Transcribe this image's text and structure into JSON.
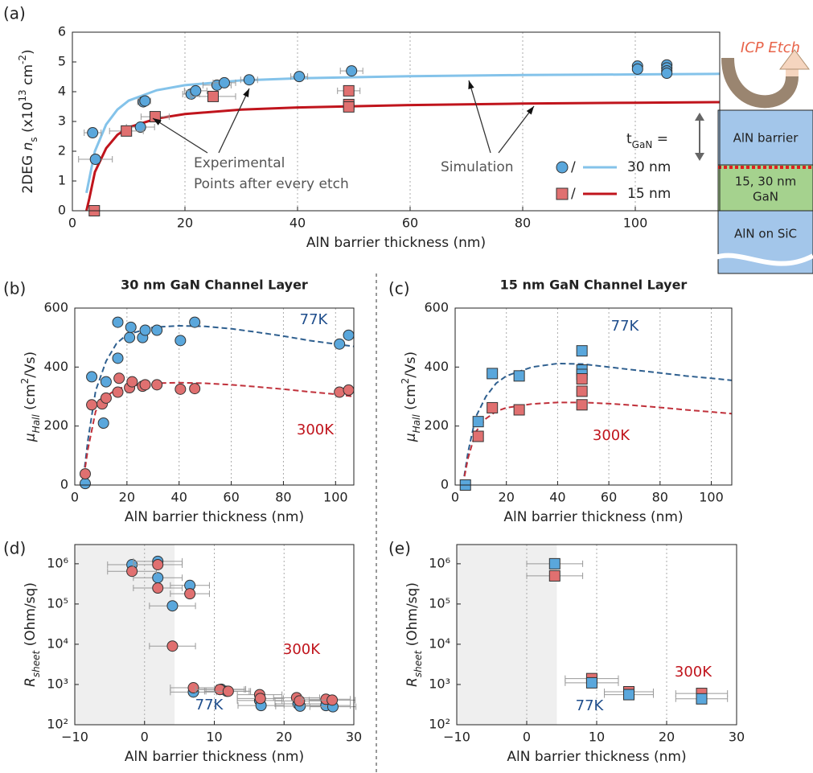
{
  "chart_data": [
    {
      "type": "scatter",
      "panel_label": "(a)",
      "xlabel": [
        {
          "text": "AlN barrier thickness (nm)"
        }
      ],
      "ylabel": [
        {
          "text": "2DEG "
        },
        {
          "text": "n",
          "style": "italic"
        },
        {
          "text": "s",
          "style": "sub"
        },
        {
          "text": " (x10"
        },
        {
          "text": "13",
          "style": "sup"
        },
        {
          "text": " cm"
        },
        {
          "text": "-2",
          "style": "sup"
        },
        {
          "text": ")"
        }
      ],
      "xlim": [
        0,
        115
      ],
      "ylim": [
        0,
        6
      ],
      "xticks": [
        0,
        20,
        40,
        60,
        80,
        100
      ],
      "yticks": [
        0,
        1,
        2,
        3,
        4,
        5,
        6
      ],
      "grid": "x",
      "legend": true,
      "legend_title": [
        {
          "text": "t"
        },
        {
          "text": "GaN",
          "style": "sub"
        },
        {
          "text": " ="
        }
      ],
      "legend_separator": "/",
      "annotations": [
        "Experimental",
        "Points after every etch",
        "Simulation"
      ],
      "series": [
        {
          "name": "30 nm",
          "color": "#5aa7dc",
          "line_color": "#84c3ea",
          "marker": "circle",
          "points": {
            "x": [
              4.1,
              3.6,
              12.1,
              12.6,
              12.9,
              21.1,
              21.9,
              25.7,
              27,
              31.4,
              40.3,
              49.6,
              100.4,
              100.4,
              105.6,
              105.6,
              105.6,
              105.6
            ],
            "y": [
              1.73,
              2.62,
              2.81,
              3.66,
              3.69,
              3.92,
              4.03,
              4.22,
              4.3,
              4.4,
              4.51,
              4.7,
              4.86,
              4.76,
              4.9,
              4.8,
              4.7,
              4.62
            ],
            "xerr": [
              3,
              1.5,
              2.5,
              1,
              1,
              1.5,
              2,
              2.5,
              2,
              1.5,
              1.5,
              2,
              0.5,
              0.5,
              0.5,
              0.5,
              0.5,
              0.5
            ]
          },
          "fit": {
            "x": [
              2.5,
              4,
              6,
              8,
              10,
              15,
              20,
              30,
              40,
              60,
              80,
              100,
              115
            ],
            "y": [
              0.6,
              2.0,
              2.9,
              3.4,
              3.7,
              4.05,
              4.22,
              4.38,
              4.45,
              4.52,
              4.56,
              4.58,
              4.6
            ]
          }
        },
        {
          "name": "15 nm",
          "color": "#e07070",
          "line_color": "#c0141c",
          "marker": "square",
          "points": {
            "x": [
              3.9,
              9.6,
              14.7,
              25,
              49.1,
              49.1,
              49.1
            ],
            "y": [
              0,
              2.68,
              3.16,
              3.84,
              4.03,
              3.57,
              3.49
            ],
            "xerr": [
              0,
              3,
              2.5,
              4,
              2,
              0.5,
              0.5
            ]
          },
          "fit": {
            "x": [
              2.5,
              3,
              4,
              6,
              8,
              10,
              15,
              20,
              30,
              40,
              60,
              80,
              100,
              115
            ],
            "y": [
              0,
              0.4,
              1.3,
              2.1,
              2.55,
              2.8,
              3.1,
              3.25,
              3.4,
              3.47,
              3.55,
              3.6,
              3.63,
              3.65
            ]
          }
        }
      ]
    },
    {
      "type": "scatter",
      "panel_label": "(b)",
      "title": "30 nm GaN Channel Layer",
      "xlabel": [
        {
          "text": "AlN barrier thickness (nm)"
        }
      ],
      "ylabel": [
        {
          "text": "μ",
          "style": "italic"
        },
        {
          "text": "Hall",
          "style": "sub-italic"
        },
        {
          "text": " (cm"
        },
        {
          "text": "2",
          "style": "sup"
        },
        {
          "text": "/Vs)"
        }
      ],
      "xlim": [
        0,
        107
      ],
      "ylim": [
        0,
        600
      ],
      "xticks": [
        0,
        20,
        40,
        60,
        80,
        100
      ],
      "yticks": [
        0,
        200,
        400,
        600
      ],
      "grid": "x",
      "series": [
        {
          "name": "77K",
          "color": "#5aa7dc",
          "line_color": "#2e5f8f",
          "label_color": "#1f4e8c",
          "marker": "circle",
          "dash": true,
          "points": {
            "x": [
              4,
              6.5,
              11,
              12,
              16.5,
              16.5,
              21,
              21.5,
              26,
              27,
              31.5,
              40.5,
              46,
              101.5,
              105
            ],
            "y": [
              5,
              367,
              210,
              350,
              430,
              552,
              500,
              535,
              500,
              525,
              525,
              490,
              552,
              478,
              508
            ]
          },
          "fit": {
            "x": [
              3,
              5,
              8,
              12,
              16,
              20,
              30,
              40,
              50,
              60,
              70,
              80,
              90,
              100,
              107
            ],
            "y": [
              0,
              150,
              320,
              420,
              480,
              510,
              535,
              540,
              538,
              530,
              518,
              505,
              490,
              478,
              470
            ]
          }
        },
        {
          "name": "300K",
          "color": "#e07070",
          "line_color": "#c0303a",
          "label_color": "#c0141c",
          "marker": "circle",
          "dash": true,
          "points": {
            "x": [
              4,
              6.5,
              10.5,
              12,
              16.5,
              17,
              21,
              22,
              26,
              27,
              31.5,
              40.5,
              46,
              101.5,
              105
            ],
            "y": [
              38,
              272,
              275,
              295,
              315,
              362,
              330,
              350,
              335,
              340,
              340,
              325,
              327,
              315,
              322
            ]
          },
          "fit": {
            "x": [
              3,
              5,
              8,
              12,
              16,
              20,
              30,
              40,
              50,
              60,
              70,
              80,
              90,
              100,
              107
            ],
            "y": [
              0,
              120,
              250,
              300,
              325,
              335,
              345,
              347,
              345,
              340,
              333,
              325,
              316,
              308,
              300
            ]
          }
        }
      ]
    },
    {
      "type": "scatter",
      "panel_label": "(c)",
      "title": "15 nm GaN Channel Layer",
      "xlabel": [
        {
          "text": "AlN barrier thickness (nm)"
        }
      ],
      "ylabel": [
        {
          "text": "μ",
          "style": "italic"
        },
        {
          "text": "Hall",
          "style": "sub-italic"
        },
        {
          "text": " (cm"
        },
        {
          "text": "2",
          "style": "sup"
        },
        {
          "text": "/Vs)"
        }
      ],
      "xlim": [
        0,
        108
      ],
      "ylim": [
        0,
        600
      ],
      "xticks": [
        0,
        20,
        40,
        60,
        80,
        100
      ],
      "yticks": [
        0,
        200,
        400,
        600
      ],
      "grid": "x",
      "series": [
        {
          "name": "77K",
          "color": "#5aa7dc",
          "line_color": "#2e5f8f",
          "label_color": "#1f4e8c",
          "marker": "square",
          "dash": true,
          "points": {
            "x": [
              4,
              9,
              14.5,
              25,
              49.5,
              49.5,
              49.5
            ],
            "y": [
              0,
              215,
              378,
              370,
              455,
              390,
              375
            ]
          },
          "fit": {
            "x": [
              3,
              5,
              8,
              12,
              16,
              20,
              30,
              40,
              50,
              60,
              70,
              80,
              90,
              100,
              108
            ],
            "y": [
              0,
              110,
              230,
              300,
              345,
              370,
              400,
              412,
              410,
              400,
              390,
              380,
              370,
              362,
              355
            ]
          }
        },
        {
          "name": "300K",
          "color": "#e07070",
          "line_color": "#c0303a",
          "label_color": "#c0141c",
          "marker": "square",
          "dash": true,
          "points": {
            "x": [
              9,
              14.5,
              25,
              49.5,
              49.5,
              49.5
            ],
            "y": [
              165,
              262,
              255,
              360,
              318,
              272
            ]
          },
          "fit": {
            "x": [
              3,
              5,
              8,
              12,
              16,
              20,
              30,
              40,
              50,
              60,
              70,
              80,
              90,
              100,
              108
            ],
            "y": [
              0,
              90,
              180,
              225,
              250,
              262,
              275,
              280,
              280,
              276,
              270,
              263,
              255,
              248,
              242
            ]
          }
        }
      ]
    },
    {
      "type": "scatter",
      "panel_label": "(d)",
      "xlabel": [
        {
          "text": "AlN barrier thickness (nm)"
        }
      ],
      "ylabel": [
        {
          "text": "R",
          "style": "italic"
        },
        {
          "text": "sheet",
          "style": "sub-italic"
        },
        {
          "text": " (Ohm/sq)"
        }
      ],
      "xlim": [
        -10,
        30
      ],
      "ylim": [
        100,
        3000000
      ],
      "yscale": "log",
      "grid": "x",
      "shaded_region": [
        -10,
        4.3
      ],
      "xticks": [
        {
          "value": -10,
          "label": "−10"
        },
        0,
        10,
        20,
        30
      ],
      "yticks": [
        {
          "value": 100,
          "label": "10²"
        },
        {
          "value": 1000,
          "label": "10³"
        },
        {
          "value": 10000,
          "label": "10⁴"
        },
        {
          "value": 100000,
          "label": "10⁵"
        },
        {
          "value": 1000000,
          "label": "10⁶"
        }
      ],
      "series": [
        {
          "name": "77K",
          "color": "#5aa7dc",
          "label_color": "#1f4e8c",
          "marker": "circle",
          "points": {
            "x": [
              -1.8,
              1.9,
              1.9,
              6.5,
              4,
              7,
              11,
              11.8,
              16.5,
              16.7,
              22,
              22.3,
              26,
              27
            ],
            "y": [
              950000,
              1150000,
              450000,
              290000,
              90000,
              650,
              760,
              680,
              400,
              300,
              330,
              290,
              300,
              280
            ],
            "xerr": [
              3.5,
              3.5,
              3.5,
              2.8,
              3.3,
              3.3,
              3.5,
              3.2,
              3.2,
              3.3,
              3.3,
              3.5,
              3.5,
              3.3
            ]
          }
        },
        {
          "name": "300K",
          "color": "#e07070",
          "label_color": "#c0141c",
          "marker": "circle",
          "points": {
            "x": [
              -1.8,
              1.9,
              1.9,
              6.5,
              4,
              7,
              10.8,
              12,
              16.5,
              16.6,
              21.8,
              22.2,
              26,
              26.9
            ],
            "y": [
              650000,
              950000,
              250000,
              180000,
              9000,
              830,
              750,
              680,
              560,
              450,
              470,
              390,
              430,
              410
            ],
            "xerr": [
              3.5,
              3.5,
              3.5,
              2.8,
              3.3,
              3.3,
              3.5,
              3.2,
              3.2,
              3.3,
              3.3,
              3.5,
              3.5,
              3.3
            ]
          }
        }
      ]
    },
    {
      "type": "scatter",
      "panel_label": "(e)",
      "xlabel": [
        {
          "text": "AlN barrier thickness (nm)"
        }
      ],
      "ylabel": [
        {
          "text": "R",
          "style": "italic"
        },
        {
          "text": "sheet",
          "style": "sub-italic"
        },
        {
          "text": " (Ohm/sq)"
        }
      ],
      "xlim": [
        -10,
        30
      ],
      "ylim": [
        100,
        3000000
      ],
      "yscale": "log",
      "grid": "x",
      "shaded_region": [
        -10,
        4.3
      ],
      "xticks": [
        {
          "value": -10,
          "label": "−10"
        },
        0,
        10,
        20,
        30
      ],
      "yticks": [
        {
          "value": 100,
          "label": "10²"
        },
        {
          "value": 1000,
          "label": "10³"
        },
        {
          "value": 10000,
          "label": "10⁴"
        },
        {
          "value": 100000,
          "label": "10⁵"
        },
        {
          "value": 1000000,
          "label": "10⁶"
        }
      ],
      "series": [
        {
          "name": "300K",
          "color": "#e07070",
          "label_color": "#c0141c",
          "marker": "square",
          "points": {
            "x": [
              4,
              9.3,
              14.6,
              25
            ],
            "y": [
              500000,
              1400,
              660,
              600
            ],
            "xerr": [
              4,
              3.8,
              3.5,
              3.7
            ]
          }
        },
        {
          "name": "77K",
          "color": "#5aa7dc",
          "label_color": "#1f4e8c",
          "marker": "square",
          "points": {
            "x": [
              4,
              9.3,
              14.6,
              25
            ],
            "y": [
              1000000,
              1100,
              560,
              440
            ],
            "xerr": [
              4,
              3.8,
              3.5,
              3.7
            ]
          }
        }
      ]
    }
  ],
  "diagram": {
    "etch": "ICP Etch",
    "barrier": "AlN barrier",
    "channel": [
      "15, 30 nm",
      "GaN"
    ],
    "substrate": "AlN on SiC"
  }
}
